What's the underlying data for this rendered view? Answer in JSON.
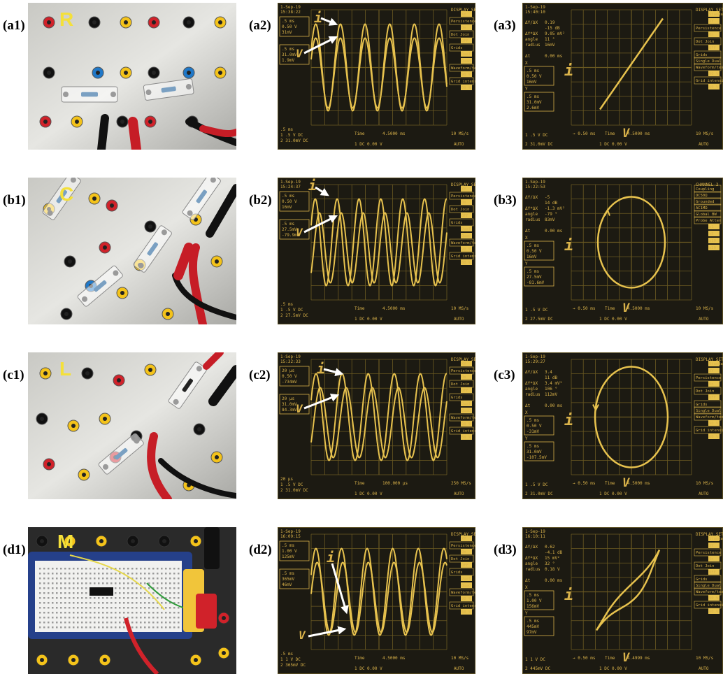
{
  "rows": [
    {
      "id": "a",
      "element": "R",
      "labels": [
        "(a1)",
        "(a2)",
        "(a3)"
      ],
      "wave": {
        "date": "1-Sep-19",
        "time": "15:38:22",
        "ch1": [
          ".5 ms",
          "0.50 V",
          "31mV"
        ],
        "ch2": [
          ".5 ms",
          "31.0mV",
          "1.9mV"
        ],
        "bottom_left": [
          ".5 ms",
          "1 .5  V DC",
          "2 31.0mV DC"
        ],
        "time_label": "Time",
        "time_value": "4.5000 ms",
        "trig": "1  DC 0.00 V",
        "rate": "10 MS/s",
        "mode": "AUTO",
        "menu": [
          "DISPLAY SETUP",
          "XY",
          "Persistence",
          "On",
          "Dot Join",
          "OFF",
          "Grids",
          "Dual",
          "Quad",
          "Waveform/text intensity",
          "90 %",
          "Grid intensity",
          "60 %"
        ],
        "i": "i",
        "v": "V"
      },
      "xy": {
        "date": "1-Sep-19",
        "time": "15:40:10",
        "readout": [
          [
            "ΔY/ΔX",
            "0.19"
          ],
          [
            "",
            "-15 dB"
          ],
          [
            "ΔY*ΔX",
            "9.05 mV²"
          ],
          [
            "angle",
            "11 °"
          ],
          [
            "radius",
            "16mV"
          ]
        ],
        "dt": [
          "Δt",
          "0.00 ms"
        ],
        "ch1": [
          "X",
          ".5 ms",
          "0.50 V",
          "16mV"
        ],
        "ch2": [
          "Y",
          ".5 ms",
          "31.0mV",
          "2.6mV"
        ],
        "bottom": [
          "1 .5  V DC",
          "2 31.0mV DC",
          "→ 0.50 ms",
          "Time",
          "4.5000 ms",
          "1  DC 0.00 V",
          "10 MS/s",
          "AUTO"
        ],
        "menu": [
          "DISPLAY SETUP",
          "Standard",
          "XY",
          "Persistence",
          "On",
          "Dot Join",
          "OFF",
          "Grids",
          "Single Dual",
          "Waveform/text intensity",
          "90 %",
          "Grid intensity",
          "60 %"
        ],
        "i": "i",
        "v": "V"
      }
    },
    {
      "id": "b",
      "element": "C",
      "labels": [
        "(b1)",
        "(b2)",
        "(b3)"
      ],
      "wave": {
        "date": "1-Sep-19",
        "time": "15:24:37",
        "ch1": [
          ".5 ms",
          "0.50 V",
          "16mV"
        ],
        "ch2": [
          ".5 ms",
          "27.5mV",
          "-79.9mV"
        ],
        "bottom_left": [
          ".5 ms",
          "1 .5  V DC",
          "2 27.5mV DC"
        ],
        "time_label": "Time",
        "time_value": "4.5000 ms",
        "trig": "1  DC 0.00 V",
        "rate": "10 MS/s",
        "mode": "AUTO",
        "menu": [
          "DISPLAY SETUP",
          "XY",
          "Persistence",
          "On",
          "Dot Join",
          "OFF",
          "Grids",
          "Dual",
          "Quad",
          "Waveform/text intensity",
          "90 %",
          "Grid intensity",
          "60 %"
        ],
        "i": "i",
        "v": "V"
      },
      "xy": {
        "date": "1-Sep-19",
        "time": "15:22:53",
        "readout": [
          [
            "ΔY/ΔX",
            "-5"
          ],
          [
            "",
            "14 dB"
          ],
          [
            "ΔY*ΔX",
            "-1.3 mV²"
          ],
          [
            "angle",
            "-79 °"
          ],
          [
            "radius",
            "83mV"
          ]
        ],
        "dt": [
          "Δt",
          "0.00 ms"
        ],
        "ch1": [
          "X",
          ".5 ms",
          "0.50 V",
          "16mV"
        ],
        "ch2": [
          "Y",
          ".5 ms",
          "27.5mV",
          "-81.6mV"
        ],
        "bottom": [
          "1 .5  V DC",
          "2 27.5mV DC",
          "→ 0.50 ms",
          "Time",
          "4.5000 ms",
          "1  DC 0.00 V",
          "10 MS/s",
          "AUTO"
        ],
        "menu": [
          "CHANNEL 2",
          "Coupling",
          "DC50Ω",
          "Grounded",
          "AC1MΩ",
          "Global BW",
          "Probe Atten",
          "x1",
          "x5",
          "x10",
          "x20"
        ],
        "i": "i",
        "v": "V"
      }
    },
    {
      "id": "c",
      "element": "L",
      "labels": [
        "(c1)",
        "(c2)",
        "(c3)"
      ],
      "wave": {
        "date": "1-Sep-19",
        "time": "15:32:33",
        "ch1": [
          "20 μs",
          "0.50 V",
          "-734mV"
        ],
        "ch2": [
          "20 μs",
          "31.0mV",
          "84.3mV"
        ],
        "bottom_left": [
          "20 μs",
          "1 .5  V DC",
          "2 31.0mV DC"
        ],
        "time_label": "Time",
        "time_value": "100.000 μs",
        "trig": "1  DC 0.00 V",
        "rate": "250 MS/s",
        "mode": "AUTO",
        "menu": [
          "DISPLAY SETUP",
          "XY",
          "Persistence",
          "On",
          "Dot Join",
          "OFF",
          "Grids",
          "Dual",
          "Quad",
          "Waveform/text intensity",
          "90 %",
          "Grid intensity",
          "60 %"
        ],
        "i": "i",
        "v": "V"
      },
      "xy": {
        "date": "1-Sep-19",
        "time": "15:29:27",
        "readout": [
          [
            "ΔY/ΔX",
            "3.4"
          ],
          [
            "",
            "11 dB"
          ],
          [
            "ΔY*ΔX",
            "3.4 mV²"
          ],
          [
            "angle",
            "106 °"
          ],
          [
            "radius",
            "112mV"
          ]
        ],
        "dt": [
          "Δt",
          "0.00 ms"
        ],
        "ch1": [
          "X",
          ".5 ms",
          "0.50 V",
          "-31mV"
        ],
        "ch2": [
          "Y",
          ".5 ms",
          "31.0mV",
          "-107.5mV"
        ],
        "bottom": [
          "1 .5  V DC",
          "2 31.0mV DC",
          "→ 0.50 ms",
          "Time",
          "4.5000 ms",
          "1  DC 0.00 V",
          "10 MS/s",
          "AUTO"
        ],
        "menu": [
          "DISPLAY SETUP",
          "Standard",
          "XY",
          "Persistence",
          "On",
          "Dot Join",
          "OFF",
          "Grids",
          "Single Dual",
          "Waveform/text intensity",
          "90 %",
          "Grid intensity",
          "60 %"
        ],
        "i": "i",
        "v": "V"
      }
    },
    {
      "id": "d",
      "element": "M",
      "labels": [
        "(d1)",
        "(d2)",
        "(d3)"
      ],
      "wave": {
        "date": "1-Sep-19",
        "time": "16:09:15",
        "ch1": [
          ".5 ms",
          "1.00 V",
          "125mV"
        ],
        "ch2": [
          ".5 ms",
          "365mV",
          "46mV"
        ],
        "bottom_left": [
          ".5 ms",
          "1 1  V DC",
          "2 365mV DC"
        ],
        "time_label": "Time",
        "time_value": "4.5000 ms",
        "trig": "1  DC 0.00 V",
        "rate": "10 MS/s",
        "mode": "AUTO",
        "menu": [
          "DISPLAY SETUP",
          "XY",
          "Persistence",
          "On",
          "Dot Join",
          "OFF",
          "Grids",
          "Dual",
          "Quad",
          "Waveform/text intensity",
          "90 %",
          "Grid intensity",
          "60 %"
        ],
        "i": "i",
        "v": "V"
      },
      "xy": {
        "date": "1-Sep-19",
        "time": "16:10:11",
        "readout": [
          [
            "ΔY/ΔX",
            "0.62"
          ],
          [
            "",
            "-4.1 dB"
          ],
          [
            "ΔY*ΔX",
            "15 mV²"
          ],
          [
            "angle",
            "32 °"
          ],
          [
            "radius",
            "0.18 V"
          ]
        ],
        "dt": [
          "Δt",
          "0.00 ms"
        ],
        "ch1": [
          "X",
          ".5 ms",
          "1.00 V",
          "156mV"
        ],
        "ch2": [
          "Y",
          ".5 ms",
          "445mV",
          "97mV"
        ],
        "bottom": [
          "1 1  V DC",
          "2 445mV DC",
          "→ 0.50 ms",
          "Time",
          "4.4999 ms",
          "1  DC 0.00 V",
          "10 MS/s",
          "AUTO"
        ],
        "menu": [
          "DISPLAY SETUP",
          "Standard",
          "XY",
          "Persistence",
          "On",
          "Dot Join",
          "OFF",
          "Grids",
          "Single Dual",
          "Waveform/text intensity",
          "90 %",
          "Grid intensity",
          "60 %"
        ],
        "i": "i",
        "v": "V"
      }
    }
  ]
}
